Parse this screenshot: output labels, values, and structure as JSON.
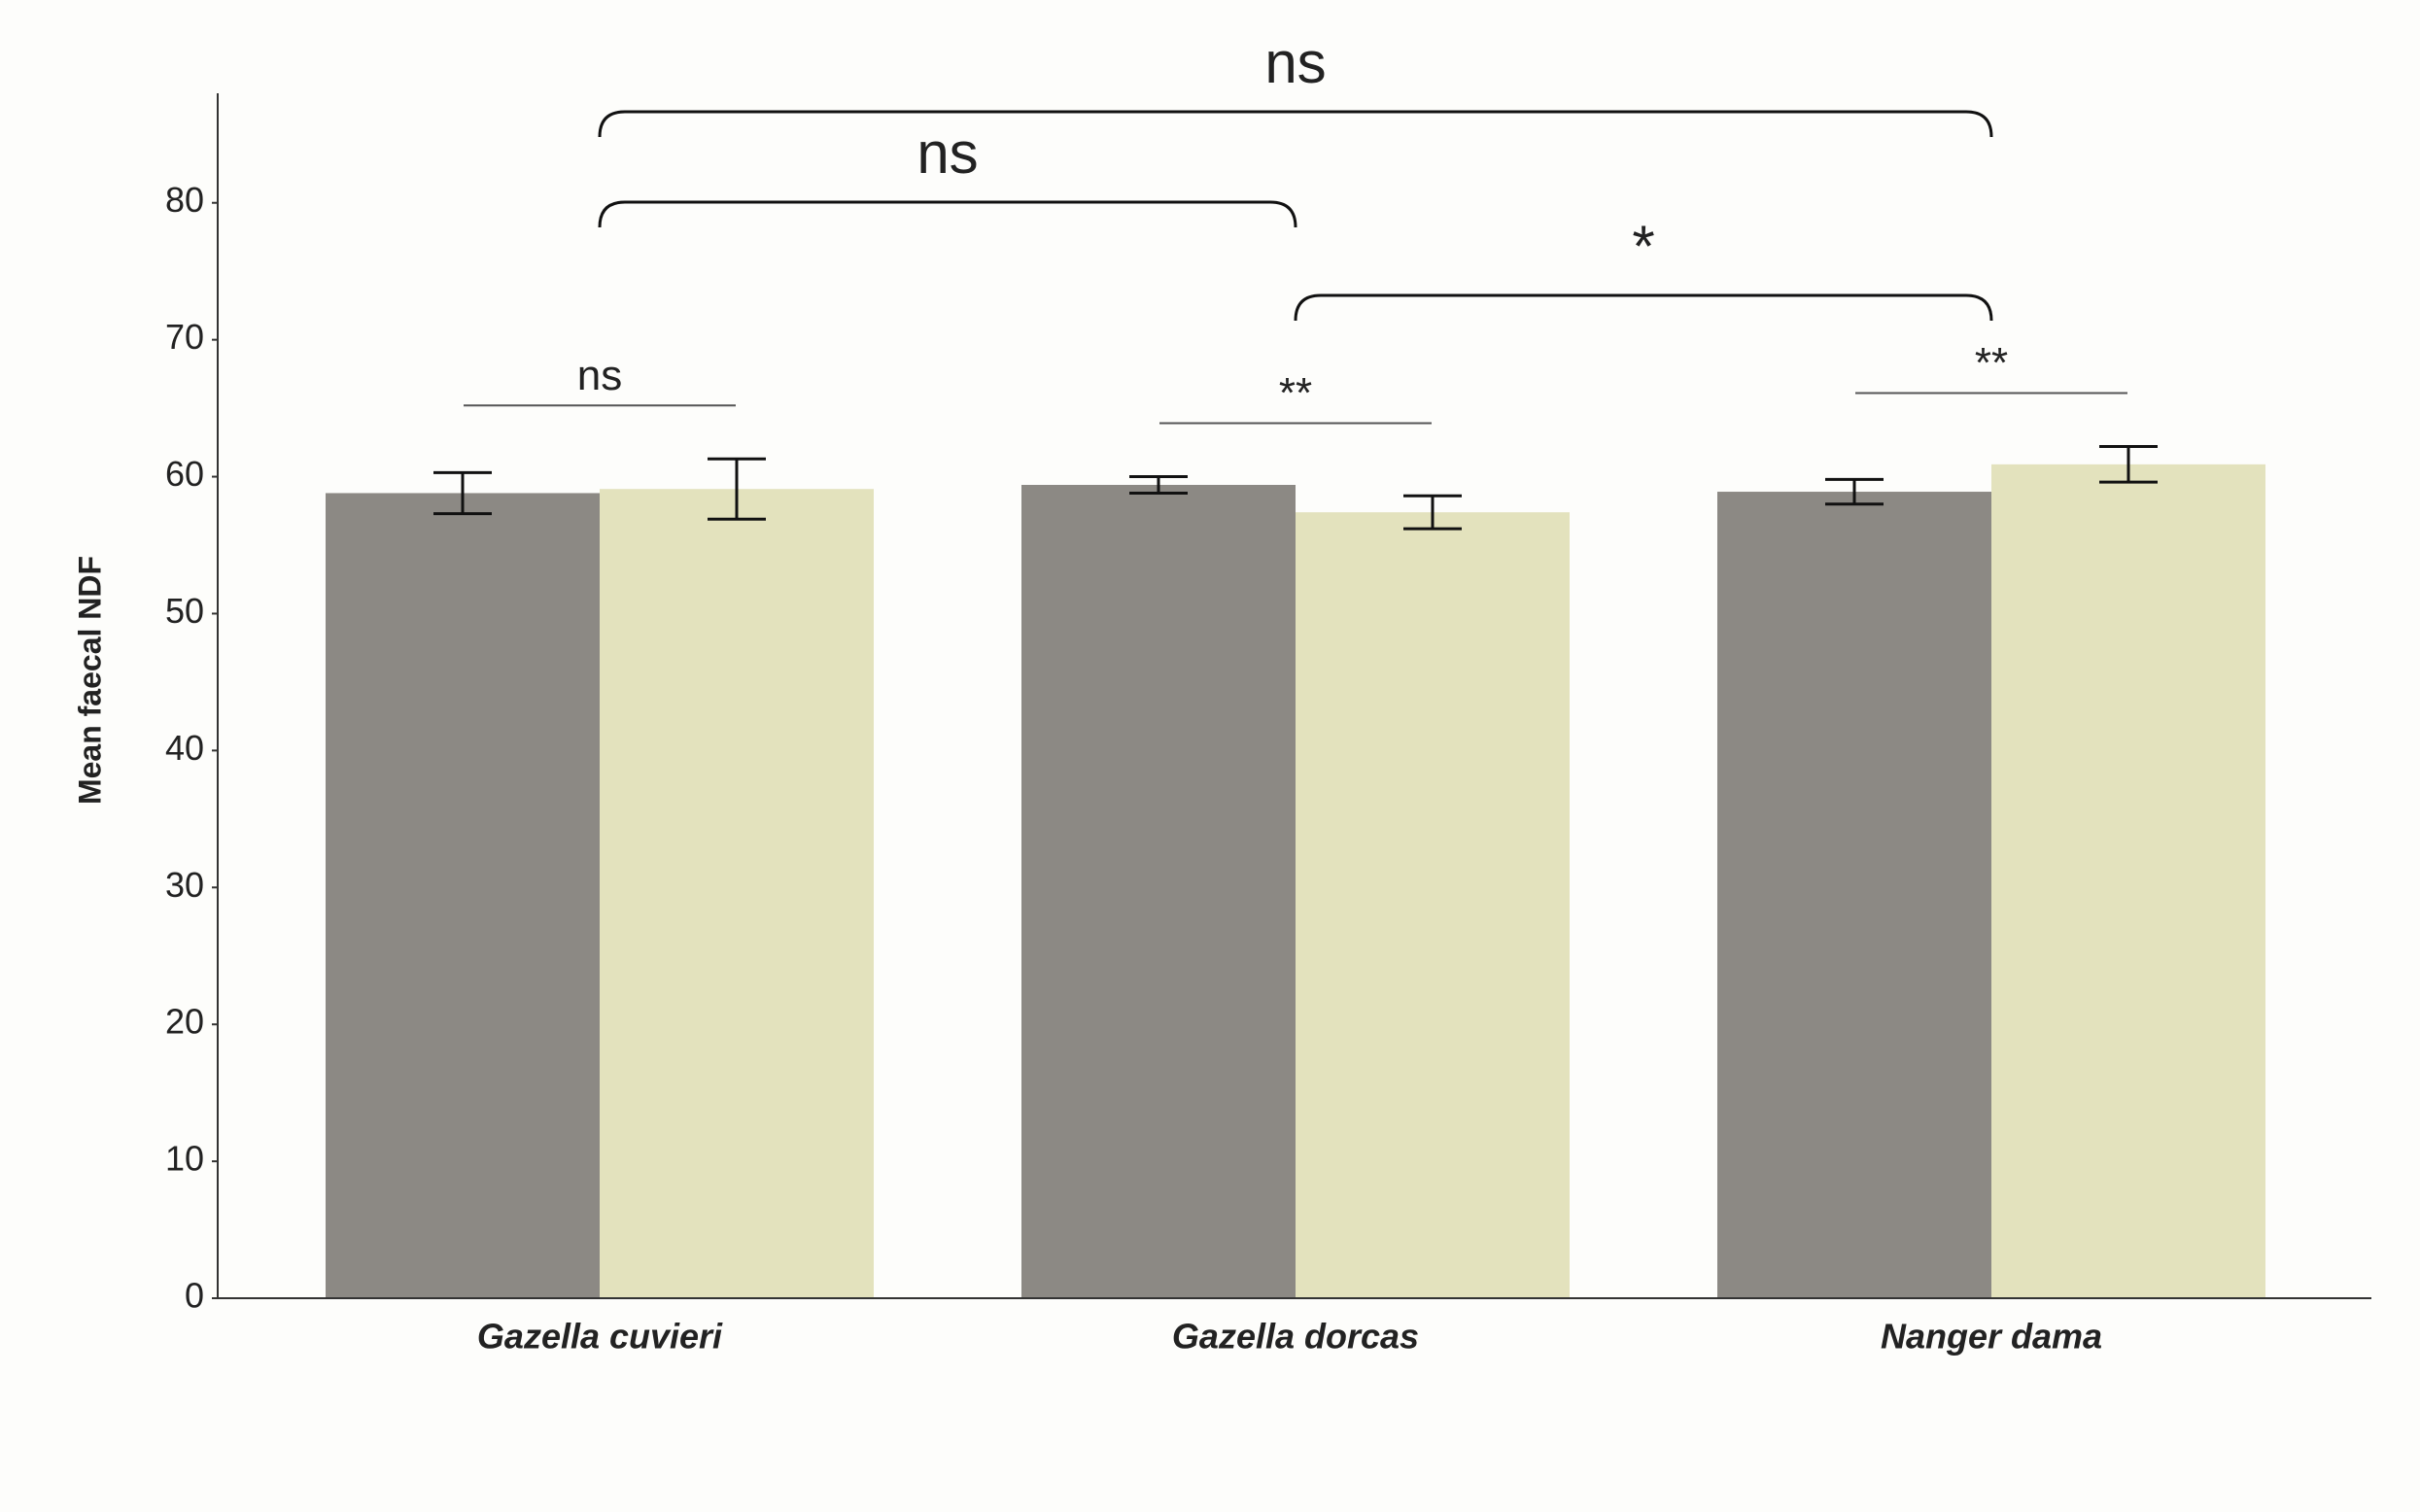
{
  "chart_data": {
    "type": "bar",
    "y_label": "Mean faecal NDF",
    "categories": [
      "Gazella cuvieri",
      "Gazella dorcas",
      "Nanger dama"
    ],
    "series": [
      {
        "color": "#8c8984",
        "values": [
          58.8,
          59.4,
          58.9
        ],
        "errors": [
          1.5,
          0.6,
          0.9
        ]
      },
      {
        "color": "#e3e2bd",
        "values": [
          59.1,
          57.4,
          60.9
        ],
        "errors": [
          2.2,
          1.2,
          1.3
        ]
      }
    ],
    "ylim": [
      0,
      88
    ],
    "yticks": [
      0,
      10,
      20,
      30,
      40,
      50,
      60,
      70,
      80
    ],
    "group_annotations": [
      "ns",
      "**",
      "**"
    ],
    "comparisons": [
      {
        "label": "ns",
        "pair": [
          0,
          2
        ]
      },
      {
        "label": "ns",
        "pair": [
          0,
          1
        ]
      },
      {
        "label": "*",
        "pair": [
          1,
          2
        ]
      }
    ]
  }
}
